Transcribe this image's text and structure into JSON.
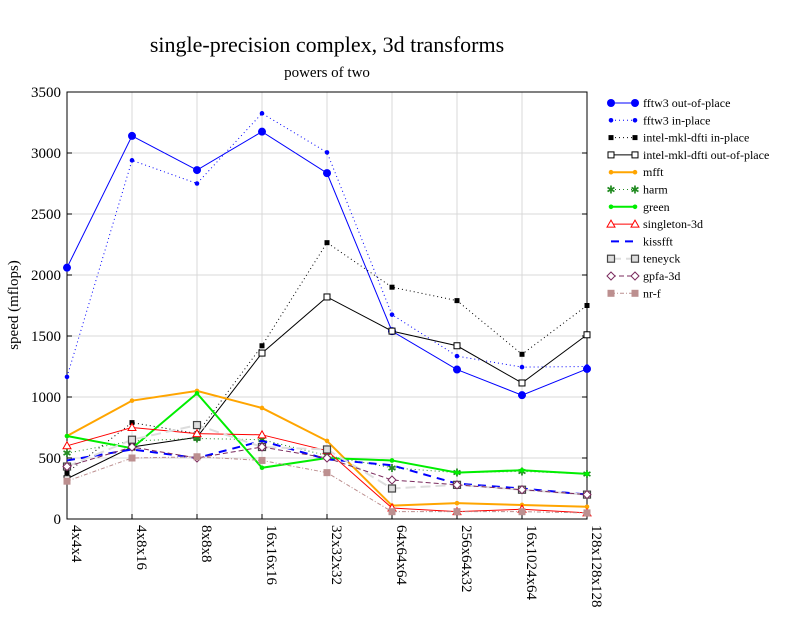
{
  "chart_data": {
    "type": "line",
    "title": "single-precision complex, 3d transforms",
    "subtitle": "powers of two",
    "xlabel": "",
    "ylabel": "speed (mflops)",
    "ylim": [
      0,
      3500
    ],
    "yticks": [
      0,
      500,
      1000,
      1500,
      2000,
      2500,
      3000,
      3500
    ],
    "grid": true,
    "legend_position": "right",
    "categories": [
      "4x4x4",
      "4x8x16",
      "8x8x8",
      "16x16x16",
      "32x32x32",
      "64x64x64",
      "256x64x32",
      "16x1024x64",
      "128x128x128"
    ],
    "series": [
      {
        "name": "fftw3 out-of-place",
        "color": "#0000ff",
        "dash": "",
        "width": 1,
        "marker": "bigdot",
        "values": [
          2060,
          3140,
          2860,
          3175,
          2835,
          1540,
          1225,
          1015,
          1230
        ]
      },
      {
        "name": "fftw3 in-place",
        "color": "#0000ff",
        "dash": "1,3",
        "width": 1,
        "marker": "dot",
        "values": [
          1165,
          2940,
          2750,
          3325,
          3005,
          1675,
          1335,
          1245,
          1250
        ]
      },
      {
        "name": "intel-mkl-dfti in-place",
        "color": "#000000",
        "dash": "1,3",
        "width": 1,
        "marker": "fsquare",
        "values": [
          380,
          790,
          700,
          1420,
          2265,
          1900,
          1790,
          1350,
          1750
        ]
      },
      {
        "name": "intel-mkl-dfti out-of-place",
        "color": "#000000",
        "dash": "",
        "width": 1,
        "marker": "osquare",
        "values": [
          330,
          590,
          670,
          1360,
          1820,
          1540,
          1420,
          1115,
          1510
        ]
      },
      {
        "name": "mfft",
        "color": "#ffa500",
        "dash": "",
        "width": 2,
        "marker": "dot",
        "values": [
          680,
          970,
          1050,
          910,
          640,
          110,
          130,
          115,
          100
        ]
      },
      {
        "name": "harm",
        "color": "#228b22",
        "dash": "1,3",
        "width": 1,
        "marker": "star",
        "values": [
          540,
          640,
          660,
          650,
          520,
          420,
          380,
          390,
          370
        ]
      },
      {
        "name": "green",
        "color": "#00ee00",
        "dash": "",
        "width": 2,
        "marker": "dot",
        "values": [
          680,
          580,
          1030,
          420,
          500,
          480,
          380,
          400,
          370
        ]
      },
      {
        "name": "singleton-3d",
        "color": "#ff0000",
        "dash": "",
        "width": 1,
        "marker": "triangle",
        "values": [
          600,
          750,
          700,
          690,
          560,
          90,
          60,
          80,
          50
        ]
      },
      {
        "name": "kissfft",
        "color": "#0000ff",
        "dash": "8,6",
        "width": 2,
        "marker": "none",
        "values": [
          480,
          570,
          500,
          640,
          490,
          440,
          290,
          250,
          200
        ]
      },
      {
        "name": "teneyck",
        "color": "#dddddd",
        "dash": "10,5",
        "width": 2,
        "marker": "gsquare",
        "values": [
          430,
          650,
          770,
          590,
          570,
          250,
          280,
          240,
          200
        ]
      },
      {
        "name": "gpfa-3d",
        "color": "#7b2b5e",
        "dash": "5,3",
        "width": 1,
        "marker": "diamond",
        "values": [
          430,
          590,
          500,
          590,
          500,
          320,
          280,
          240,
          200
        ]
      },
      {
        "name": "nr-f",
        "color": "#bc8f8f",
        "dash": "4,2,1,2",
        "width": 1,
        "marker": "rsquare",
        "values": [
          310,
          500,
          510,
          480,
          380,
          60,
          60,
          60,
          50
        ]
      }
    ]
  }
}
